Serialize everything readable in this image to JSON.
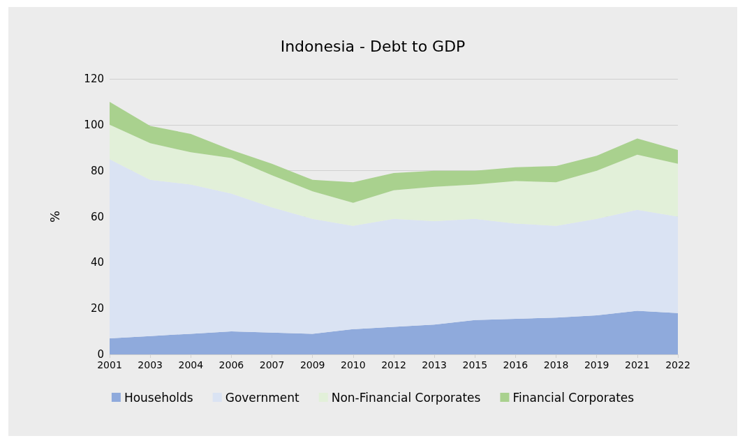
{
  "chart_data": {
    "type": "area",
    "title": "Indonesia - Debt to GDP",
    "ylabel": "%",
    "stacked": true,
    "grid": "y",
    "legend": "bottom",
    "categories": [
      "2001",
      "2003",
      "2004",
      "2006",
      "2007",
      "2009",
      "2010",
      "2012",
      "2013",
      "2015",
      "2016",
      "2018",
      "2019",
      "2021",
      "2022"
    ],
    "ylim": [
      0,
      120
    ],
    "yticks": [
      0,
      20,
      40,
      60,
      80,
      100,
      120
    ],
    "series": [
      {
        "name": "Households",
        "color": "#8faadc",
        "values": [
          7,
          8,
          9,
          10,
          9.5,
          9,
          11,
          12,
          13,
          15,
          15.5,
          16,
          17,
          19,
          18
        ]
      },
      {
        "name": "Government",
        "color": "#dae3f3",
        "values": [
          78,
          68,
          65,
          60,
          54.5,
          50,
          45,
          47,
          45,
          44,
          41.5,
          40,
          42,
          44,
          42
        ]
      },
      {
        "name": "Non-Financial Corporates",
        "color": "#e2f0d9",
        "values": [
          15,
          16,
          14,
          15.5,
          14,
          12,
          10,
          12.5,
          15,
          15,
          18.5,
          19,
          21,
          24,
          23
        ]
      },
      {
        "name": "Financial Corporates",
        "color": "#a9d18e",
        "values": [
          10,
          7.5,
          8,
          3.5,
          5,
          5,
          9,
          7.5,
          7,
          6,
          6,
          7,
          6.5,
          7,
          6
        ]
      }
    ]
  }
}
